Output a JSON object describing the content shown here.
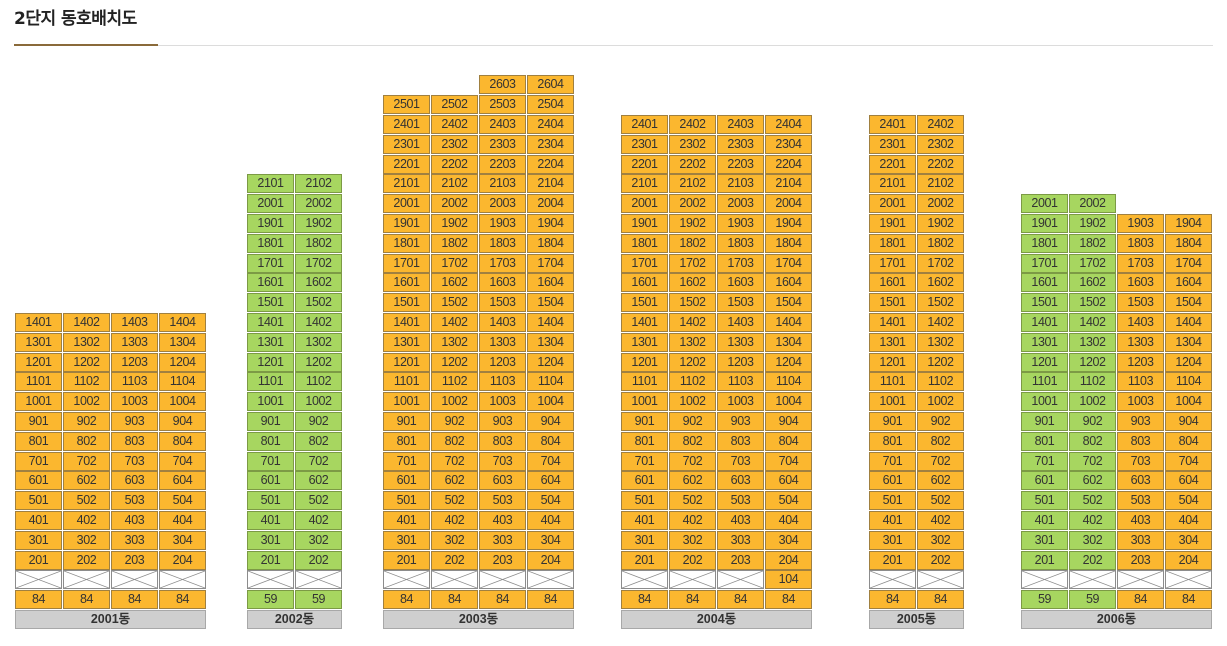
{
  "page_title": "2단지 동호배치도",
  "colors": {
    "type84": "#fbb72f",
    "type59": "#a7d660",
    "label_bg": "#cfcfcf",
    "accent": "#8a6a3a"
  },
  "buildings": [
    {
      "name": "2001동",
      "columns": [
        {
          "size": "84",
          "type": "orange",
          "units": [
            "201",
            "301",
            "401",
            "501",
            "601",
            "701",
            "801",
            "901",
            "1001",
            "1101",
            "1201",
            "1301",
            "1401"
          ],
          "row1": []
        },
        {
          "size": "84",
          "type": "orange",
          "units": [
            "202",
            "302",
            "402",
            "502",
            "602",
            "702",
            "802",
            "902",
            "1002",
            "1102",
            "1202",
            "1302",
            "1402"
          ],
          "row1": []
        },
        {
          "size": "84",
          "type": "orange",
          "units": [
            "203",
            "303",
            "403",
            "503",
            "603",
            "703",
            "803",
            "903",
            "1003",
            "1103",
            "1203",
            "1303",
            "1403"
          ],
          "row1": []
        },
        {
          "size": "84",
          "type": "orange",
          "units": [
            "204",
            "304",
            "404",
            "504",
            "604",
            "704",
            "804",
            "904",
            "1004",
            "1104",
            "1204",
            "1304",
            "1404"
          ],
          "row1": []
        }
      ]
    },
    {
      "name": "2002동",
      "columns": [
        {
          "size": "59",
          "type": "green",
          "units": [
            "201",
            "301",
            "401",
            "501",
            "601",
            "701",
            "801",
            "901",
            "1001",
            "1101",
            "1201",
            "1301",
            "1401",
            "1501",
            "1601",
            "1701",
            "1801",
            "1901",
            "2001",
            "2101"
          ],
          "row1": []
        },
        {
          "size": "59",
          "type": "green",
          "units": [
            "202",
            "302",
            "402",
            "502",
            "602",
            "702",
            "802",
            "902",
            "1002",
            "1102",
            "1202",
            "1302",
            "1402",
            "1502",
            "1602",
            "1702",
            "1802",
            "1902",
            "2002",
            "2102"
          ],
          "row1": []
        }
      ]
    },
    {
      "name": "2003동",
      "columns": [
        {
          "size": "84",
          "type": "orange",
          "units": [
            "201",
            "301",
            "401",
            "501",
            "601",
            "701",
            "801",
            "901",
            "1001",
            "1101",
            "1201",
            "1301",
            "1401",
            "1501",
            "1601",
            "1701",
            "1801",
            "1901",
            "2001",
            "2101",
            "2201",
            "2301",
            "2401",
            "2501"
          ],
          "row1": []
        },
        {
          "size": "84",
          "type": "orange",
          "units": [
            "202",
            "302",
            "402",
            "502",
            "602",
            "702",
            "802",
            "902",
            "1002",
            "1102",
            "1202",
            "1302",
            "1402",
            "1502",
            "1602",
            "1702",
            "1802",
            "1902",
            "2002",
            "2102",
            "2202",
            "2302",
            "2402",
            "2502"
          ],
          "row1": []
        },
        {
          "size": "84",
          "type": "orange",
          "units": [
            "203",
            "303",
            "403",
            "503",
            "603",
            "703",
            "803",
            "903",
            "1003",
            "1103",
            "1203",
            "1303",
            "1403",
            "1503",
            "1603",
            "1703",
            "1803",
            "1903",
            "2003",
            "2103",
            "2203",
            "2303",
            "2403",
            "2503",
            "2603"
          ],
          "row1": []
        },
        {
          "size": "84",
          "type": "orange",
          "units": [
            "204",
            "304",
            "404",
            "504",
            "604",
            "704",
            "804",
            "904",
            "1004",
            "1104",
            "1204",
            "1304",
            "1404",
            "1504",
            "1604",
            "1704",
            "1804",
            "1904",
            "2004",
            "2104",
            "2204",
            "2304",
            "2404",
            "2504",
            "2604"
          ],
          "row1": []
        }
      ]
    },
    {
      "name": "2004동",
      "columns": [
        {
          "size": "84",
          "type": "orange",
          "units": [
            "201",
            "301",
            "401",
            "501",
            "601",
            "701",
            "801",
            "901",
            "1001",
            "1101",
            "1201",
            "1301",
            "1401",
            "1501",
            "1601",
            "1701",
            "1801",
            "1901",
            "2001",
            "2101",
            "2201",
            "2301",
            "2401"
          ],
          "row1": []
        },
        {
          "size": "84",
          "type": "orange",
          "units": [
            "202",
            "302",
            "402",
            "502",
            "602",
            "702",
            "802",
            "902",
            "1002",
            "1102",
            "1202",
            "1302",
            "1402",
            "1502",
            "1602",
            "1702",
            "1802",
            "1902",
            "2002",
            "2102",
            "2202",
            "2302",
            "2402"
          ],
          "row1": []
        },
        {
          "size": "84",
          "type": "orange",
          "units": [
            "203",
            "303",
            "403",
            "503",
            "603",
            "703",
            "803",
            "903",
            "1003",
            "1103",
            "1203",
            "1303",
            "1403",
            "1503",
            "1603",
            "1703",
            "1803",
            "1903",
            "2003",
            "2103",
            "2203",
            "2303",
            "2403"
          ],
          "row1": []
        },
        {
          "size": "84",
          "type": "orange",
          "units": [
            "204",
            "304",
            "404",
            "504",
            "604",
            "704",
            "804",
            "904",
            "1004",
            "1104",
            "1204",
            "1304",
            "1404",
            "1504",
            "1604",
            "1704",
            "1804",
            "1904",
            "2004",
            "2104",
            "2204",
            "2304",
            "2404"
          ],
          "row1": [
            "104"
          ]
        }
      ]
    },
    {
      "name": "2005동",
      "columns": [
        {
          "size": "84",
          "type": "orange",
          "units": [
            "201",
            "301",
            "401",
            "501",
            "601",
            "701",
            "801",
            "901",
            "1001",
            "1101",
            "1201",
            "1301",
            "1401",
            "1501",
            "1601",
            "1701",
            "1801",
            "1901",
            "2001",
            "2101",
            "2201",
            "2301",
            "2401"
          ],
          "row1": []
        },
        {
          "size": "84",
          "type": "orange",
          "units": [
            "202",
            "302",
            "402",
            "502",
            "602",
            "702",
            "802",
            "902",
            "1002",
            "1102",
            "1202",
            "1302",
            "1402",
            "1502",
            "1602",
            "1702",
            "1802",
            "1902",
            "2002",
            "2102",
            "2202",
            "2302",
            "2402"
          ],
          "row1": []
        }
      ]
    },
    {
      "name": "2006동",
      "columns": [
        {
          "size": "59",
          "type": "green",
          "units": [
            "201",
            "301",
            "401",
            "501",
            "601",
            "701",
            "801",
            "901",
            "1001",
            "1101",
            "1201",
            "1301",
            "1401",
            "1501",
            "1601",
            "1701",
            "1801",
            "1901",
            "2001"
          ],
          "row1": []
        },
        {
          "size": "59",
          "type": "green",
          "units": [
            "202",
            "302",
            "402",
            "502",
            "602",
            "702",
            "802",
            "902",
            "1002",
            "1102",
            "1202",
            "1302",
            "1402",
            "1502",
            "1602",
            "1702",
            "1802",
            "1902",
            "2002"
          ],
          "row1": []
        },
        {
          "size": "84",
          "type": "orange",
          "units": [
            "203",
            "303",
            "403",
            "503",
            "603",
            "703",
            "803",
            "903",
            "1003",
            "1103",
            "1203",
            "1303",
            "1403",
            "1503",
            "1603",
            "1703",
            "1803",
            "1903"
          ],
          "row1": []
        },
        {
          "size": "84",
          "type": "orange",
          "units": [
            "204",
            "304",
            "404",
            "504",
            "604",
            "704",
            "804",
            "904",
            "1004",
            "1104",
            "1204",
            "1304",
            "1404",
            "1504",
            "1604",
            "1704",
            "1804",
            "1904"
          ],
          "row1": []
        }
      ]
    }
  ]
}
